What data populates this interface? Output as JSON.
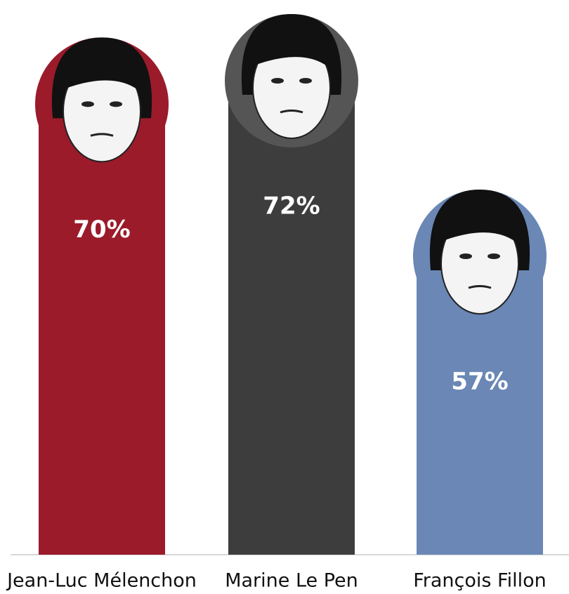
{
  "chart_data": {
    "type": "bar",
    "categories": [
      "Jean-Luc Mélenchon",
      "Marine Le Pen",
      "François Fillon"
    ],
    "values": [
      70,
      72,
      57
    ],
    "value_labels": [
      "70%",
      "72%",
      "57%"
    ],
    "colors": [
      "#9b1b2b",
      "#3d3d3d",
      "#6a87b5"
    ],
    "ylim": [
      30,
      75
    ]
  }
}
